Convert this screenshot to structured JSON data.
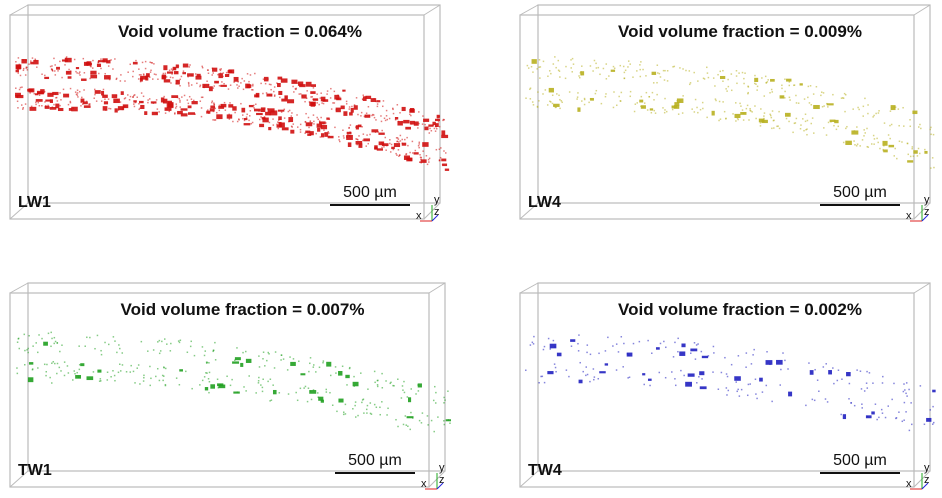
{
  "panels": [
    {
      "title": "Void volume fraction = 0.064%",
      "label": "LW1",
      "scale": "500 µm",
      "axes": [
        "x",
        "y",
        "z"
      ],
      "color": "#d01010"
    },
    {
      "title": "Void volume fraction = 0.009%",
      "label": "LW4",
      "scale": "500 µm",
      "axes": [
        "x",
        "y",
        "z"
      ],
      "color": "#b8b020"
    },
    {
      "title": "Void volume fraction = 0.007%",
      "label": "TW1",
      "scale": "500 µm",
      "axes": [
        "x",
        "y",
        "z"
      ],
      "color": "#20a020"
    },
    {
      "title": "Void volume fraction = 0.002%",
      "label": "TW4",
      "scale": "500 µm",
      "axes": [
        "x",
        "y",
        "z"
      ],
      "color": "#2020c0"
    }
  ]
}
